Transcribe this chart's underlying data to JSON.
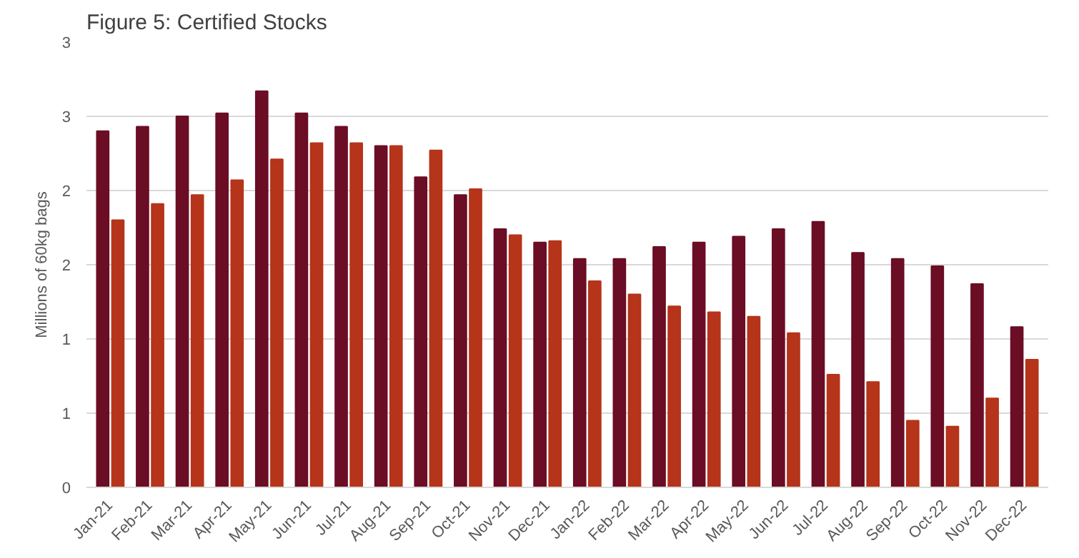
{
  "chart_data": {
    "type": "bar",
    "title": "Figure 5: Certified Stocks",
    "ylabel": "Millions of 60kg bags",
    "categories": [
      "Jan-21",
      "Feb-21",
      "Mar-21",
      "Apr-21",
      "May-21",
      "Jun-21",
      "Jul-21",
      "Aug-21",
      "Sep-21",
      "Oct-21",
      "Nov-21",
      "Dec-21",
      "Jan-22",
      "Feb-22",
      "Mar-22",
      "Apr-22",
      "May-22",
      "Jun-22",
      "Jul-22",
      "Aug-22",
      "Sep-22",
      "Oct-22",
      "Nov-22",
      "Dec-22"
    ],
    "series": [
      {
        "color": "#6b0d24",
        "values": [
          2.4,
          2.43,
          2.5,
          2.52,
          2.67,
          2.52,
          2.43,
          2.3,
          2.09,
          1.97,
          1.74,
          1.65,
          1.54,
          1.54,
          1.62,
          1.65,
          1.69,
          1.74,
          1.79,
          1.58,
          1.54,
          1.49,
          1.37,
          1.08
        ]
      },
      {
        "color": "#b5341a",
        "values": [
          1.8,
          1.91,
          1.97,
          2.07,
          2.21,
          2.32,
          2.32,
          2.3,
          2.27,
          2.01,
          1.7,
          1.66,
          1.39,
          1.3,
          1.22,
          1.18,
          1.15,
          1.04,
          0.76,
          0.71,
          0.45,
          0.41,
          0.6,
          0.86
        ]
      }
    ],
    "ylim": [
      0,
      3
    ],
    "yticks": [
      0,
      {
        "value": 0.5,
        "label": "1"
      },
      {
        "value": 1,
        "label": "1"
      },
      {
        "value": 1.5,
        "label": "2"
      },
      {
        "value": 2,
        "label": "2"
      },
      {
        "value": 2.5,
        "label": "3"
      },
      {
        "value": 3,
        "label": "3"
      }
    ],
    "grid": "y",
    "legend": false
  }
}
